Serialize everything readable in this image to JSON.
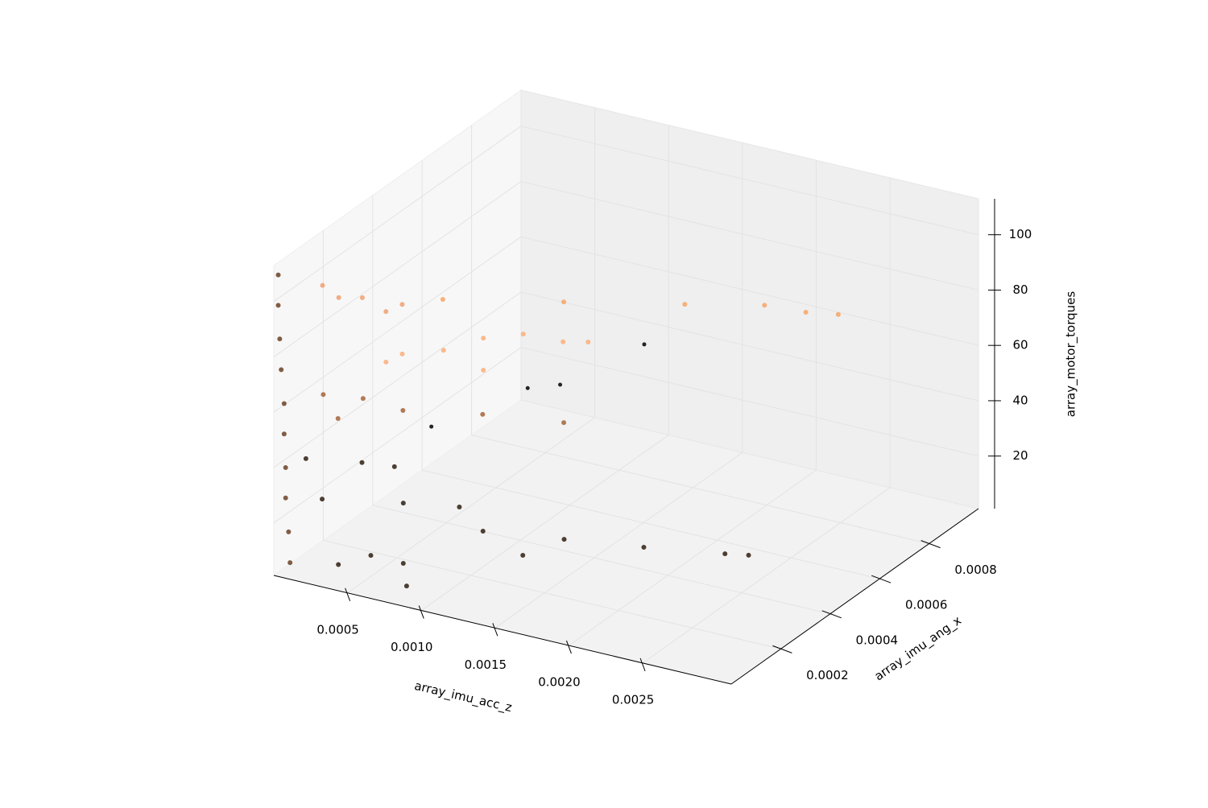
{
  "chart_data": {
    "type": "scatter3d",
    "xlabel": "array_imu_acc_z",
    "ylabel": "array_imu_ang_x",
    "zlabel": "array_motor_torques",
    "xlim": [
      0,
      0.0031
    ],
    "ylim": [
      0,
      0.001
    ],
    "zlim": [
      1,
      113
    ],
    "xticks": [
      0.0005,
      {
        "value": 0.001,
        "label": "0.0010"
      },
      0.0015,
      {
        "value": 0.002,
        "label": "0.0020"
      },
      0.0025
    ],
    "yticks": [
      0.0002,
      0.0004,
      0.0006,
      0.0008
    ],
    "zticks": [
      20,
      40,
      60,
      80,
      100
    ],
    "grid": true,
    "series": [
      {
        "color": "#6b4226",
        "x": [
          3e-05,
          3e-05,
          4e-05,
          5e-05,
          7e-05,
          7e-05,
          8e-05,
          8e-05,
          0.0001,
          0.00011
        ],
        "y": [
          0,
          0,
          0,
          0,
          0,
          0,
          0,
          0,
          0,
          0
        ],
        "z": [
          110,
          99,
          87,
          76,
          64,
          53,
          41,
          30,
          18,
          7
        ]
      },
      {
        "color": "#f0a070",
        "x": [
          0.00033,
          0.0006,
          0.00087,
          0.00044,
          0.00076
        ],
        "y": [
          0,
          0,
          0,
          0,
          0
        ],
        "z": [
          110,
          109,
          110,
          107,
          106
        ]
      },
      {
        "color": "#f7a565",
        "x": [
          0.00014,
          0.00096,
          0.00178,
          0.00232,
          0.0026,
          0.00282
        ],
        "y": [
          0.0006,
          0.0006,
          0.0006,
          0.0006,
          0.0006,
          0.0006
        ],
        "z": [
          64.5,
          74,
          83.5,
          90,
          91,
          93
        ]
      },
      {
        "color": "#fcae78",
        "x": [
          0.00075,
          0.00102,
          0.00129,
          0.00048,
          0.0002,
          0.00146,
          9e-05,
          0.00075
        ],
        "y": [
          0.0004,
          0.0004,
          0.0004,
          0.0004,
          0.0004,
          0.0004,
          0.0004,
          0.0004
        ],
        "z": [
          70.9,
          75.8,
          76.4,
          63.1,
          58.2,
          78.5,
          53.9,
          59.3
        ]
      },
      {
        "color": "#a5653b",
        "x": [
          0,
          0.00027,
          0.00054,
          0.00108,
          0.00163,
          0.0001
        ],
        "y": [
          0.0002,
          0.0002,
          0.0002,
          0.0002,
          0.0002,
          0.0002
        ],
        "z": [
          53.7,
          55.7,
          54.8,
          60.2,
          64.2,
          46.3
        ]
      },
      {
        "color": "#2e1e12",
        "x": [
          5e-05,
          0.00043,
          0.00065,
          0.00016,
          0.00071,
          0.00109,
          0.00125,
          0.0018,
          0.00234,
          0.00289,
          0.00305,
          0.00071,
          0.00049,
          0.00027,
          0.0009,
          0.00152
        ],
        "y": [
          0.0001,
          0.0001,
          0.0001,
          0.0001,
          0.0001,
          0.0001,
          0.0001,
          0.0001,
          0.0001,
          0.0001,
          0.0001,
          0.0001,
          0.0001,
          0.0001,
          0,
          0.0001
        ],
        "z": [
          37.5,
          40.9,
          42.2,
          24.3,
          29.8,
          33.2,
          26.5,
          30.5,
          34.5,
          39.1,
          40.6,
          8,
          8.1,
          2,
          8.6,
          21.2
        ]
      },
      {
        "color": "#000000",
        "x": [
          0.00117,
          0.0006,
          0.00038,
          0.00023
        ],
        "y": [
          0.0008,
          0.0008,
          0.0008,
          0.0005
        ],
        "z": [
          48.6,
          26.8,
          22.8,
          26
        ]
      }
    ]
  }
}
